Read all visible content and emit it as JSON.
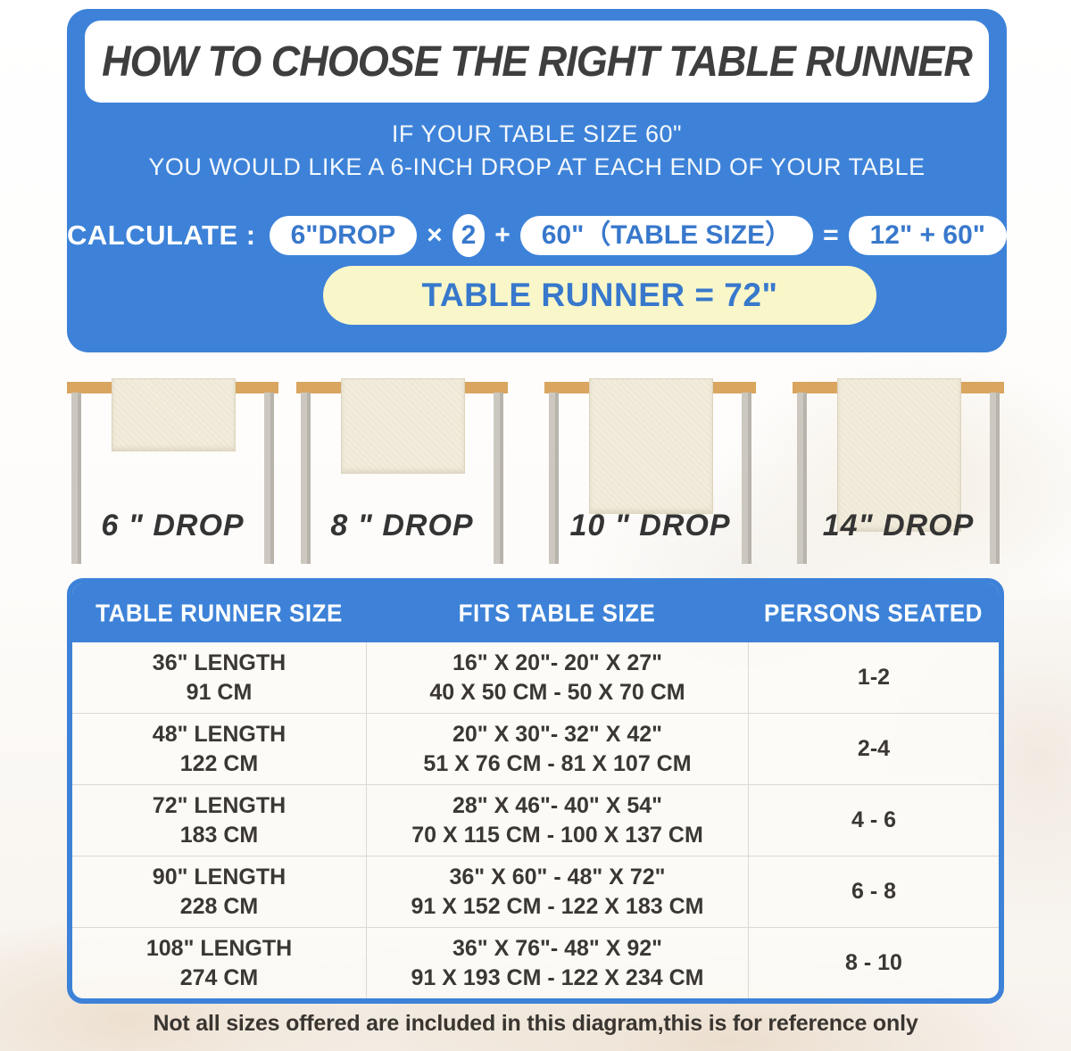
{
  "colors": {
    "panel_blue": "#3d82d8",
    "pill_text_blue": "#3878cc",
    "result_yellow": "#f9f7c9",
    "title_dark": "#3e3e3e",
    "wood_tan": "#d9a55f",
    "leg_gray": "#c8c4bc",
    "runner_cream": "#f2ecdc"
  },
  "header": {
    "title": "HOW TO CHOOSE THE RIGHT TABLE RUNNER",
    "subtitle_line1": "IF YOUR TABLE SIZE 60\"",
    "subtitle_line2": "YOU WOULD LIKE A 6-INCH DROP AT EACH END OF YOUR TABLE"
  },
  "formula": {
    "label": "CALCULATE :",
    "drop_pill": "6\"DROP",
    "times": "×",
    "multiplier": "2",
    "plus": "+",
    "table_size_pill": "60\"（TABLE SIZE）",
    "equals": "=",
    "result_pill": "12\" + 60\"",
    "runner_result": "TABLE RUNNER = 72\""
  },
  "illustrations": [
    {
      "label": "6 \" DROP"
    },
    {
      "label": "8 \" DROP"
    },
    {
      "label": "10 \" DROP"
    },
    {
      "label": "14\" DROP"
    }
  ],
  "size_table": {
    "columns": [
      "TABLE RUNNER SIZE",
      "FITS TABLE SIZE",
      "PERSONS SEATED"
    ],
    "rows": [
      {
        "size1": "36\" LENGTH",
        "size2": "91 CM",
        "fits1": "16\" X 20\"- 20\" X 27\"",
        "fits2": "40 X 50 CM - 50 X 70 CM",
        "persons": "1-2"
      },
      {
        "size1": "48\" LENGTH",
        "size2": "122 CM",
        "fits1": "20\" X 30\"- 32\" X 42\"",
        "fits2": "51 X 76 CM - 81 X 107 CM",
        "persons": "2-4"
      },
      {
        "size1": "72\" LENGTH",
        "size2": "183 CM",
        "fits1": "28\" X 46\"- 40\" X 54\"",
        "fits2": "70 X 115 CM - 100 X 137 CM",
        "persons": "4 - 6"
      },
      {
        "size1": "90\" LENGTH",
        "size2": "228 CM",
        "fits1": "36\" X 60\" - 48\" X 72\"",
        "fits2": "91 X 152 CM - 122 X 183 CM",
        "persons": "6 - 8"
      },
      {
        "size1": "108\" LENGTH",
        "size2": "274 CM",
        "fits1": "36\" X 76\"- 48\" X 92\"",
        "fits2": "91 X 193 CM - 122 X 234 CM",
        "persons": "8 - 10"
      }
    ]
  },
  "footer": {
    "note": "Not all sizes offered are included in this diagram,this is for reference only"
  }
}
